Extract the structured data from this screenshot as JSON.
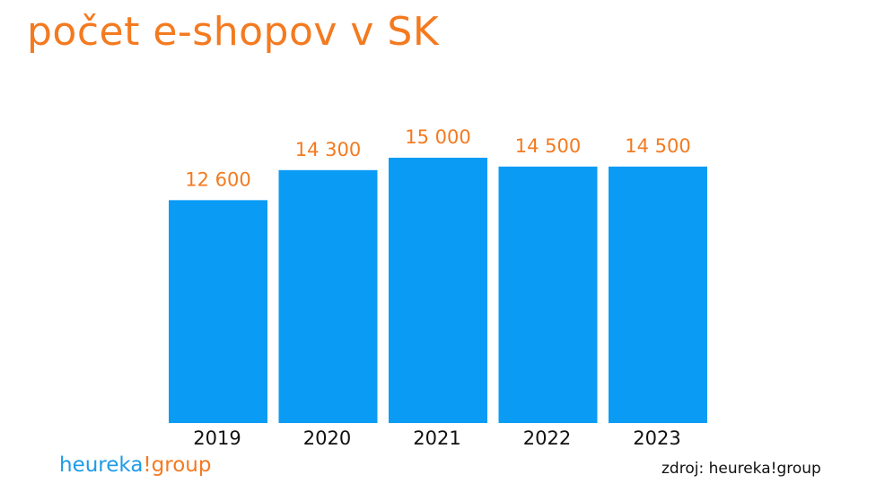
{
  "title": "počet e-shopov v SK",
  "source": "zdroj: heureka!group",
  "logo": {
    "part_a": "heureka",
    "part_b": "!group"
  },
  "colors": {
    "bar": "#0A9BF5",
    "title": "#F47A20",
    "value_label": "#F47A20",
    "text": "#111111"
  },
  "chart_data": {
    "type": "bar",
    "title": "počet e-shopov v SK",
    "categories": [
      "2019",
      "2020",
      "2021",
      "2022",
      "2023"
    ],
    "values": [
      12600,
      14300,
      15000,
      14500,
      14500
    ],
    "value_labels": [
      "12 600",
      "14 300",
      "15 000",
      "14 500",
      "14 500"
    ],
    "xlabel": "",
    "ylabel": "",
    "grid": false,
    "legend": "none"
  }
}
